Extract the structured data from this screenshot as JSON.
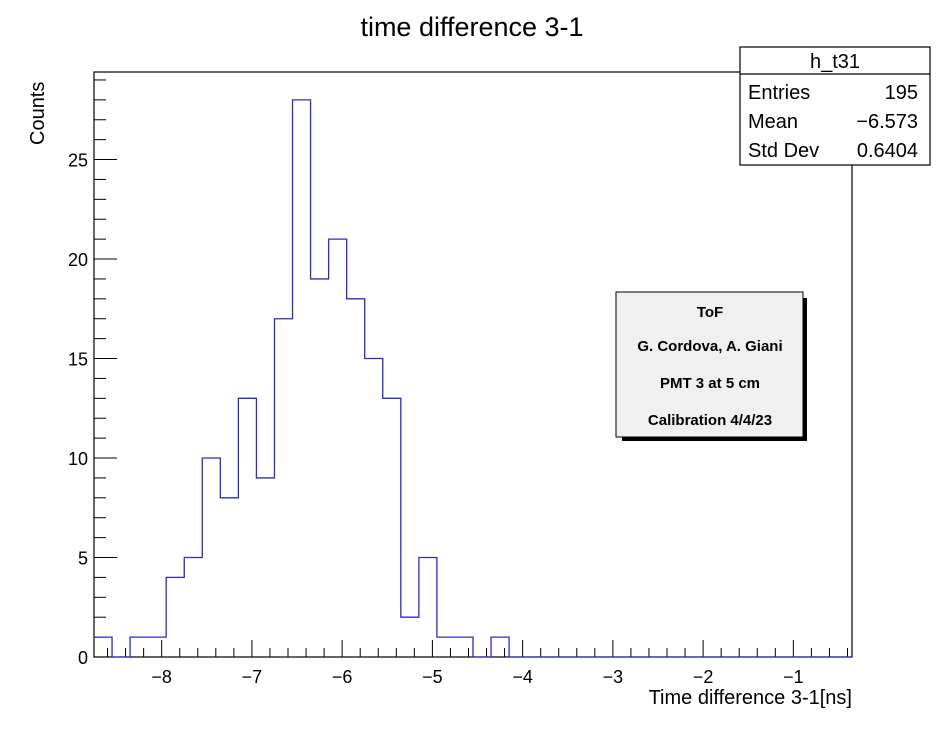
{
  "chart_data": {
    "type": "histogram",
    "title": "time difference 3-1",
    "xlabel": "Time difference 3-1[ns]",
    "ylabel": "Counts",
    "xlim": [
      -8.75,
      -0.35
    ],
    "ylim": [
      0,
      29.4
    ],
    "bin_width": 0.2,
    "x_ticks": [
      -8,
      -7,
      -6,
      -5,
      -4,
      -3,
      -2,
      -1
    ],
    "x_tick_labels": [
      "−8",
      "−7",
      "−6",
      "−5",
      "−4",
      "−3",
      "−2",
      "−1"
    ],
    "y_ticks": [
      0,
      5,
      10,
      15,
      20,
      25
    ],
    "y_tick_labels": [
      "0",
      "5",
      "10",
      "15",
      "20",
      "25"
    ],
    "bins": [
      {
        "x": -8.75,
        "count": 1
      },
      {
        "x": -8.55,
        "count": 0
      },
      {
        "x": -8.35,
        "count": 1
      },
      {
        "x": -8.15,
        "count": 1
      },
      {
        "x": -7.95,
        "count": 4
      },
      {
        "x": -7.75,
        "count": 5
      },
      {
        "x": -7.55,
        "count": 10
      },
      {
        "x": -7.35,
        "count": 8
      },
      {
        "x": -7.15,
        "count": 13
      },
      {
        "x": -6.95,
        "count": 9
      },
      {
        "x": -6.75,
        "count": 17
      },
      {
        "x": -6.55,
        "count": 28
      },
      {
        "x": -6.35,
        "count": 19
      },
      {
        "x": -6.15,
        "count": 21
      },
      {
        "x": -5.95,
        "count": 18
      },
      {
        "x": -5.75,
        "count": 15
      },
      {
        "x": -5.55,
        "count": 13
      },
      {
        "x": -5.35,
        "count": 2
      },
      {
        "x": -5.15,
        "count": 5
      },
      {
        "x": -4.95,
        "count": 1
      },
      {
        "x": -4.75,
        "count": 1
      },
      {
        "x": -4.55,
        "count": 0
      },
      {
        "x": -4.35,
        "count": 1
      },
      {
        "x": -4.15,
        "count": 0
      }
    ],
    "line_color": "#2b2bc0",
    "stats_box": {
      "name": "h_t31",
      "rows": [
        {
          "label": "Entries",
          "value": "195"
        },
        {
          "label": "Mean",
          "value": "−6.573"
        },
        {
          "label": "Std Dev",
          "value": "0.6404"
        }
      ]
    },
    "annotation": {
      "lines": [
        "ToF",
        "G. Cordova, A. Giani",
        "PMT 3 at 5 cm",
        "Calibration 4/4/23"
      ]
    }
  }
}
